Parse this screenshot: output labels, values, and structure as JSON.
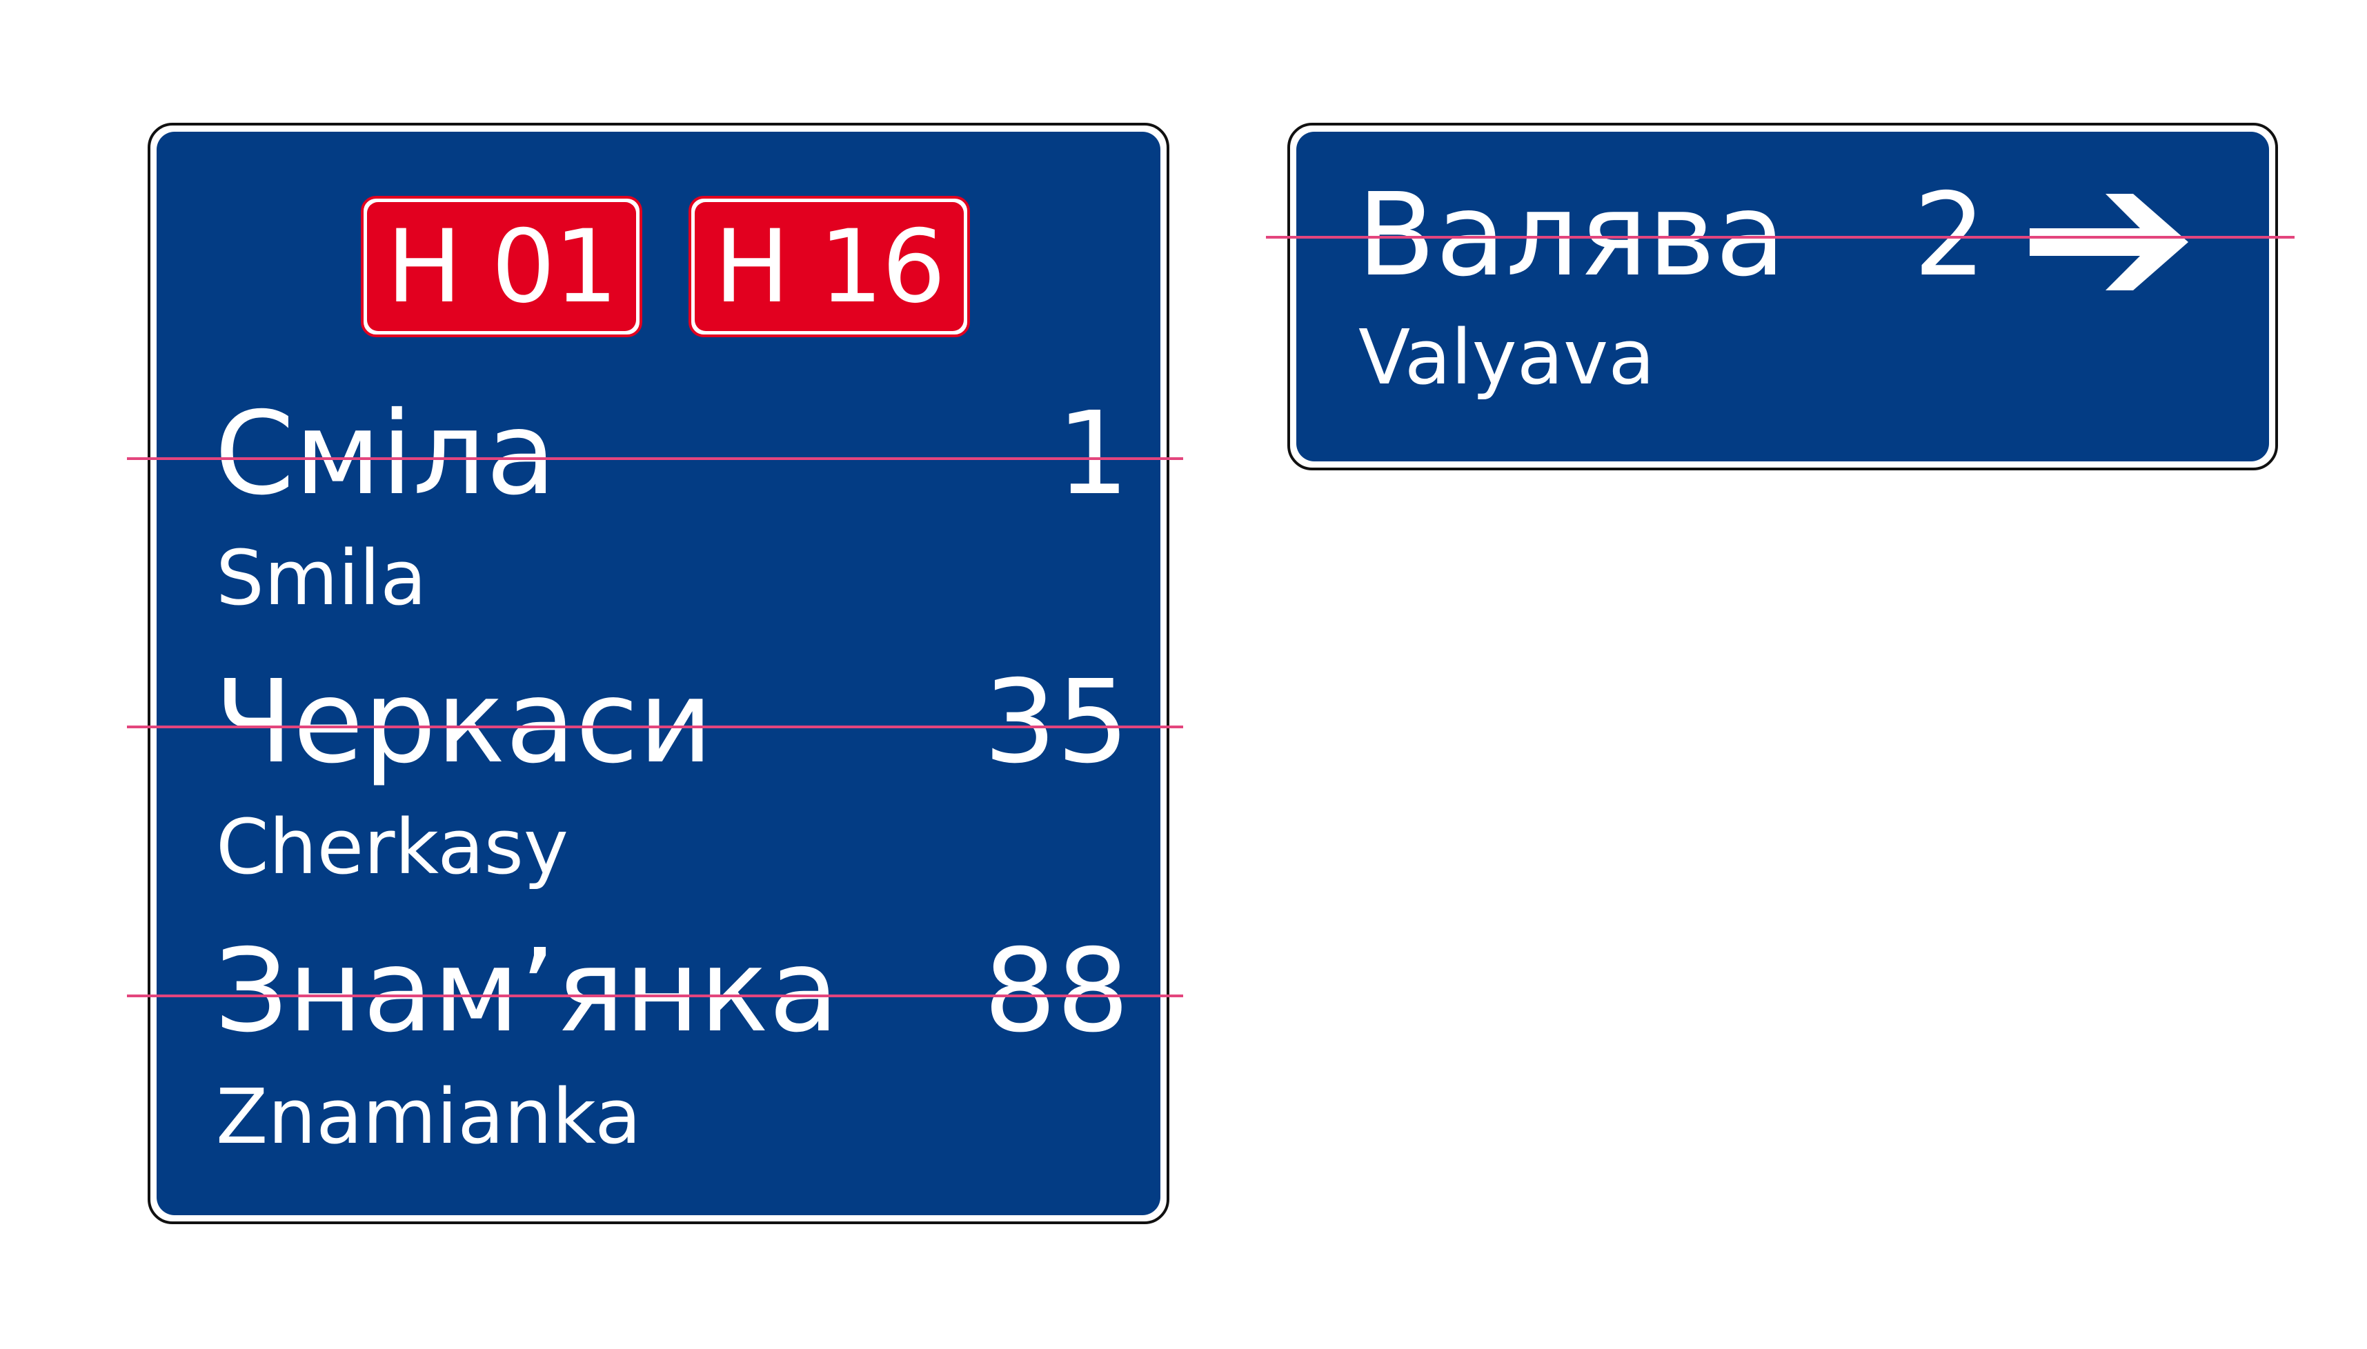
{
  "colors": {
    "sign_blue": "#033c84",
    "route_red": "#e2001f",
    "text_white": "#ffffff",
    "guide_pink": "#e3457d",
    "frame_black": "#111111"
  },
  "left_sign": {
    "route_labels": [
      "H 01",
      "H 16"
    ],
    "destinations": [
      {
        "native": "Сміла",
        "latin": "Smila",
        "distance": "1"
      },
      {
        "native": "Черкаси",
        "latin": "Cherkasy",
        "distance": "35"
      },
      {
        "native": "Знам’янка",
        "latin": "Znamianka",
        "distance": "88"
      }
    ]
  },
  "right_sign": {
    "native": "Валява",
    "latin": "Valyava",
    "distance": "2",
    "arrow_icon": "right-arrow-icon"
  }
}
